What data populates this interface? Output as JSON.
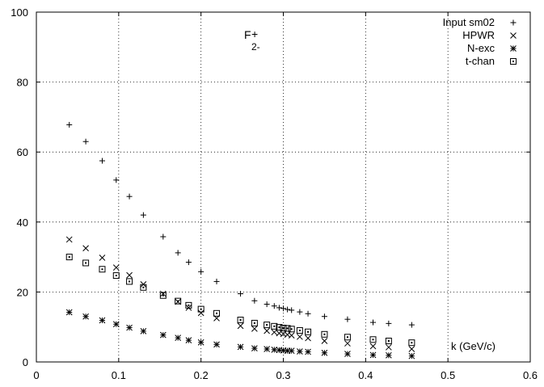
{
  "chart_data": {
    "type": "scatter",
    "title": "F",
    "title_subscript": "2-",
    "title_marker": "+",
    "xlabel": "k (GeV/c)",
    "ylabel": "",
    "xlim": [
      0,
      0.6
    ],
    "ylim": [
      0,
      100
    ],
    "xticks": [
      "0",
      "0.1",
      "0.2",
      "0.3",
      "0.4",
      "0.5",
      "0.6"
    ],
    "yticks": [
      "0",
      "20",
      "40",
      "60",
      "80",
      "100"
    ],
    "grid": true,
    "legend_position": "top-right",
    "series": [
      {
        "name": "Input sm02",
        "marker": "plus",
        "x": [
          0.04,
          0.06,
          0.08,
          0.097,
          0.113,
          0.13,
          0.154,
          0.172,
          0.185,
          0.2,
          0.219,
          0.248,
          0.265,
          0.28,
          0.289,
          0.295,
          0.3,
          0.305,
          0.31,
          0.32,
          0.33,
          0.35,
          0.378,
          0.409,
          0.428,
          0.456
        ],
        "y": [
          67.8,
          63.0,
          57.5,
          52.0,
          47.3,
          42.0,
          35.8,
          31.2,
          28.5,
          25.8,
          23.0,
          19.5,
          17.5,
          16.5,
          16.0,
          15.5,
          15.3,
          15.0,
          14.8,
          14.3,
          13.8,
          13.0,
          12.2,
          11.3,
          11.0,
          10.6
        ]
      },
      {
        "name": "HPWR",
        "marker": "cross",
        "x": [
          0.04,
          0.06,
          0.08,
          0.097,
          0.113,
          0.13,
          0.154,
          0.172,
          0.185,
          0.2,
          0.219,
          0.248,
          0.265,
          0.28,
          0.289,
          0.295,
          0.3,
          0.305,
          0.31,
          0.32,
          0.33,
          0.35,
          0.378,
          0.409,
          0.428,
          0.456
        ],
        "y": [
          35.0,
          32.5,
          29.8,
          27.0,
          24.8,
          22.2,
          19.5,
          17.2,
          15.5,
          14.0,
          12.5,
          10.3,
          9.5,
          8.9,
          8.5,
          8.2,
          8.0,
          7.8,
          7.6,
          7.2,
          6.8,
          6.0,
          5.3,
          4.5,
          4.2,
          3.7
        ]
      },
      {
        "name": "N-exc",
        "marker": "star",
        "x": [
          0.04,
          0.06,
          0.08,
          0.097,
          0.113,
          0.13,
          0.154,
          0.172,
          0.185,
          0.2,
          0.219,
          0.248,
          0.265,
          0.28,
          0.289,
          0.295,
          0.3,
          0.305,
          0.31,
          0.32,
          0.33,
          0.35,
          0.378,
          0.409,
          0.428,
          0.456
        ],
        "y": [
          14.2,
          13.0,
          11.9,
          10.8,
          9.8,
          8.8,
          7.7,
          6.9,
          6.2,
          5.6,
          5.0,
          4.3,
          3.9,
          3.7,
          3.5,
          3.4,
          3.3,
          3.2,
          3.2,
          3.0,
          2.9,
          2.6,
          2.3,
          2.0,
          1.9,
          1.7
        ]
      },
      {
        "name": "t-chan",
        "marker": "square-dot",
        "x": [
          0.04,
          0.06,
          0.08,
          0.097,
          0.113,
          0.13,
          0.154,
          0.172,
          0.185,
          0.2,
          0.219,
          0.248,
          0.265,
          0.28,
          0.289,
          0.295,
          0.3,
          0.305,
          0.31,
          0.32,
          0.33,
          0.35,
          0.378,
          0.409,
          0.428,
          0.456
        ],
        "y": [
          30.0,
          28.3,
          26.5,
          24.7,
          23.0,
          21.3,
          19.0,
          17.4,
          16.2,
          15.1,
          13.9,
          12.0,
          11.1,
          10.6,
          10.2,
          9.9,
          9.7,
          9.6,
          9.4,
          9.0,
          8.6,
          7.9,
          7.1,
          6.4,
          6.0,
          5.5
        ]
      }
    ]
  }
}
